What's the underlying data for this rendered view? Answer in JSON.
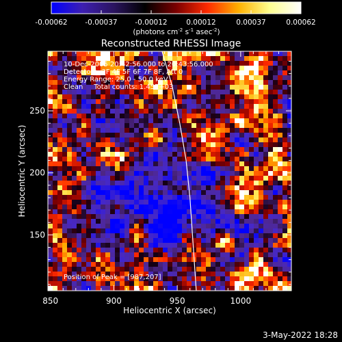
{
  "colorbar": {
    "ticks": [
      "-0.00062",
      "-0.00037",
      "-0.00012",
      "0.00012",
      "0.00037",
      "0.00062"
    ],
    "unit_parts": [
      "(photons cm",
      "-2",
      " s",
      "-1",
      " asec",
      "-2",
      ")"
    ],
    "colors": [
      "#0000ff",
      "#3d1fb0",
      "#2b1460",
      "#000000",
      "#7a0000",
      "#ff2a00",
      "#ffb000",
      "#ffff90",
      "#ffffff"
    ]
  },
  "chart_data": {
    "type": "heatmap",
    "title": "Reconstructed RHESSI Image",
    "xlabel": "Heliocentric X (arcsec)",
    "ylabel": "Heliocentric Y (arcsec)",
    "xlim": [
      848,
      1040
    ],
    "ylim": [
      105,
      298
    ],
    "x_ticks": [
      850,
      900,
      950,
      1000
    ],
    "y_ticks": [
      150,
      200,
      250
    ],
    "value_range": [
      -0.00062,
      0.00062
    ],
    "limb_curve": [
      [
        938,
        298
      ],
      [
        946,
        270
      ],
      [
        952,
        240
      ],
      [
        957,
        210
      ],
      [
        960,
        180
      ],
      [
        962,
        150
      ],
      [
        964,
        120
      ],
      [
        965,
        105
      ]
    ],
    "annotations": [
      "10-Dec-2005 20:42:56.000 to 20:43:56.000",
      "Detectors: 3F 4F 5F 6F 7F 8F, Att 0",
      "Energy Range: 25.0 - 50.0 keV",
      "Clean     Total counts: 1.45E+03"
    ],
    "peak_text": "Position of Peak = [987,207]",
    "peak_position": [
      987,
      207
    ]
  },
  "timestamp": "3-May-2022 18:28"
}
